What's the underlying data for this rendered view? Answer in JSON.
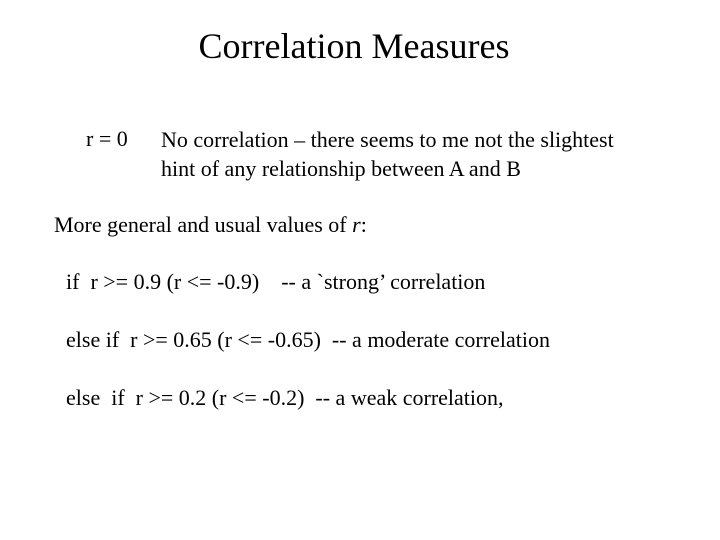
{
  "slide": {
    "title": "Correlation Measures",
    "r_zero": {
      "label": "r = 0",
      "description_line_1": "No correlation – there seems to me not the slightest",
      "description_line_2": "hint of any relationship between A and B"
    },
    "general": {
      "text_before": "More general and usual values of ",
      "italic_var": "r",
      "text_after": ":"
    },
    "rules": [
      "if  r >= 0.9 (r <= -0.9)    -- a `strong’ correlation",
      "else if  r >= 0.65 (r <= -0.65)  -- a moderate correlation",
      "else  if  r >= 0.2 (r <= -0.2)  -- a weak correlation,"
    ]
  }
}
